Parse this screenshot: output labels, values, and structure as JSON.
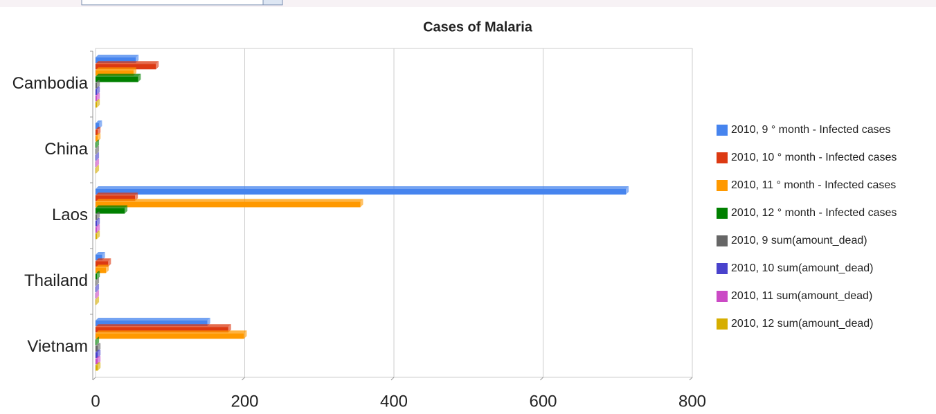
{
  "chart_data": {
    "type": "bar",
    "orientation": "horizontal",
    "title": "Cases of Malaria",
    "categories": [
      "Cambodia",
      "China",
      "Laos",
      "Thailand",
      "Vietnam"
    ],
    "series": [
      {
        "name": "2010, 9 ° month - Infected cases",
        "color": "#4684ee",
        "values": [
          54,
          5,
          711,
          9,
          150
        ]
      },
      {
        "name": "2010, 10 ° month - Infected cases",
        "color": "#dc3912",
        "values": [
          81,
          3,
          53,
          17,
          178
        ]
      },
      {
        "name": "2010, 11 ° month - Infected cases",
        "color": "#ff9900",
        "values": [
          51,
          3,
          355,
          14,
          199
        ]
      },
      {
        "name": "2010, 12 ° month - Infected cases",
        "color": "#008000",
        "values": [
          57,
          1,
          39,
          2,
          1
        ]
      },
      {
        "name": "2010, 9 sum(amount_dead)",
        "color": "#666666",
        "values": [
          2,
          1,
          2,
          1,
          3
        ]
      },
      {
        "name": "2010, 10 sum(amount_dead)",
        "color": "#4942cc",
        "values": [
          2,
          1,
          2,
          1,
          3
        ]
      },
      {
        "name": "2010, 11 sum(amount_dead)",
        "color": "#cb4ac5",
        "values": [
          2,
          1,
          2,
          1,
          3
        ]
      },
      {
        "name": "2010, 12 sum(amount_dead)",
        "color": "#d6ae00",
        "values": [
          2,
          1,
          2,
          1,
          3
        ]
      }
    ],
    "xlim": [
      0,
      800
    ],
    "xticks": [
      0,
      200,
      400,
      600,
      800
    ],
    "grid": true,
    "legend": "right"
  }
}
